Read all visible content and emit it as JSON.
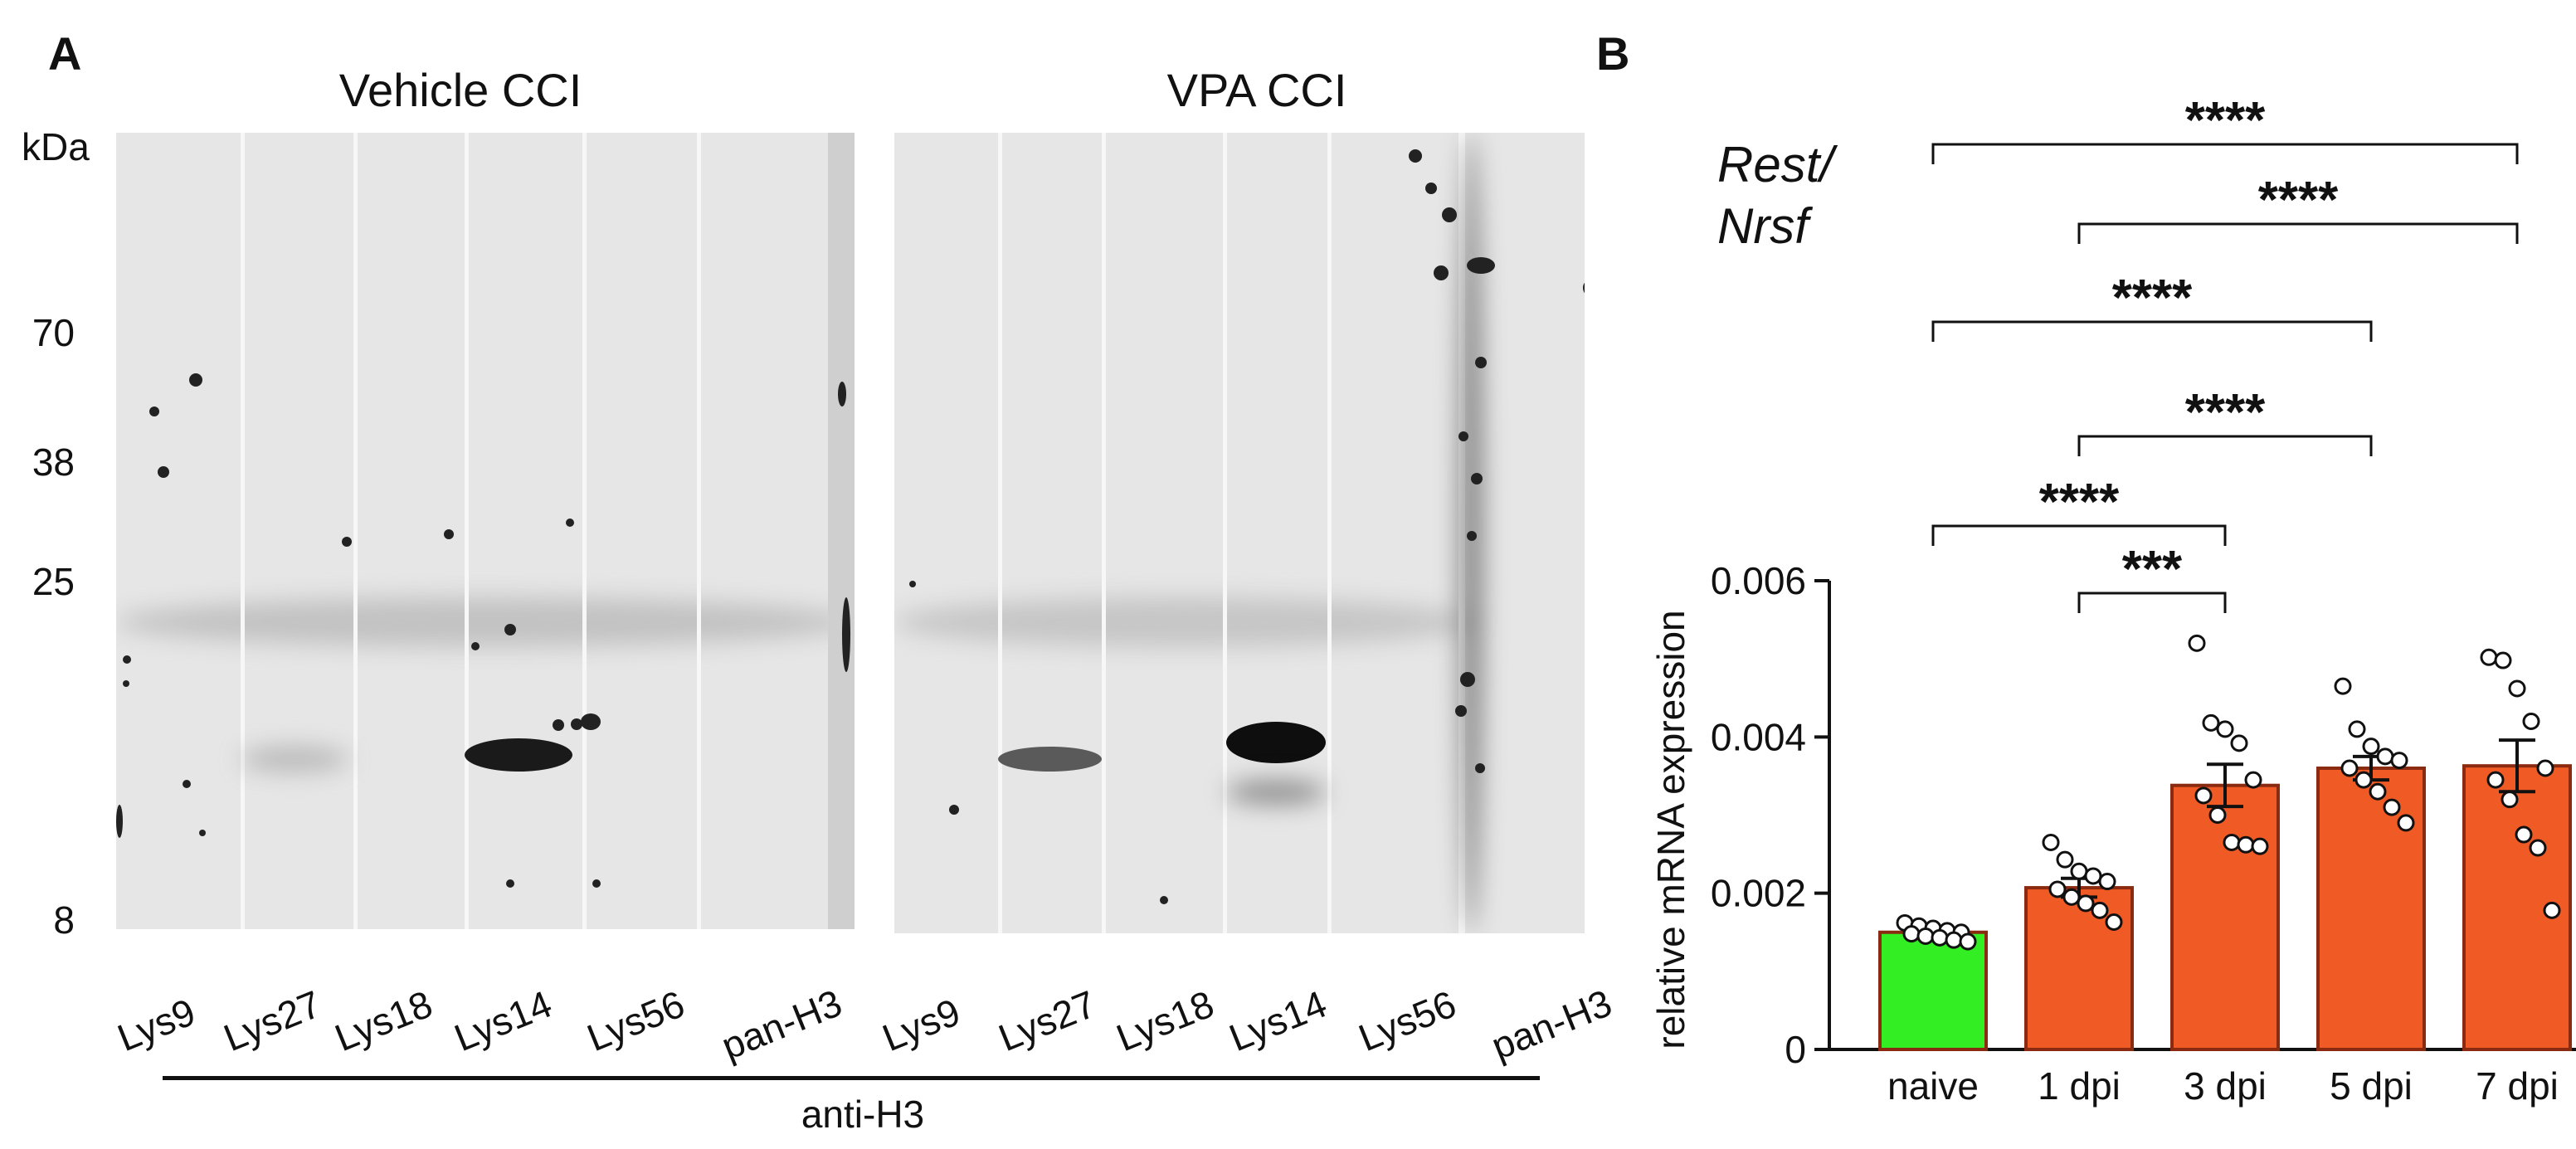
{
  "panel_a": {
    "letter": "A",
    "blots": [
      {
        "title": "Vehicle CCI",
        "lanes": [
          "Lys9",
          "Lys27",
          "Lys18",
          "Lys14",
          "Lys56",
          "pan-H3"
        ]
      },
      {
        "title": "VPA CCI",
        "lanes": [
          "Lys9",
          "Lys27",
          "Lys18",
          "Lys14",
          "Lys56",
          "pan-H3"
        ]
      }
    ],
    "mw_unit": "kDa",
    "mw_markers": [
      "70",
      "38",
      "25",
      "8"
    ],
    "antibody_label": "anti-H3"
  },
  "panel_b": {
    "letter": "B",
    "gene_label_line1": "Rest/",
    "gene_label_line2": "Nrsf"
  },
  "chart_data": {
    "type": "bar",
    "title": "",
    "xlabel": "",
    "ylabel": "relative mRNA expression",
    "ylim": [
      0,
      0.006
    ],
    "yticks": [
      "0",
      "0.002",
      "0.004",
      "0.006"
    ],
    "ytick_values": [
      0,
      0.002,
      0.004,
      0.006
    ],
    "categories": [
      "naive",
      "1 dpi",
      "3 dpi",
      "5 dpi",
      "7 dpi"
    ],
    "values": [
      0.0015,
      0.00207,
      0.00338,
      0.0036,
      0.00363
    ],
    "sem": [
      5e-05,
      0.00012,
      0.00027,
      0.00015,
      0.00033
    ],
    "bar_colors": [
      "#33ee22",
      "#f05a24",
      "#f05a24",
      "#f05a24",
      "#f05a24"
    ],
    "points": [
      [
        0.00162,
        0.00158,
        0.00155,
        0.00152,
        0.0015,
        0.00148,
        0.00145,
        0.00143,
        0.0014,
        0.00138
      ],
      [
        0.00265,
        0.00243,
        0.00228,
        0.00222,
        0.00215,
        0.00205,
        0.00195,
        0.00187,
        0.00178,
        0.00163
      ],
      [
        0.0052,
        0.00418,
        0.0041,
        0.00392,
        0.00345,
        0.00325,
        0.003,
        0.00265,
        0.00262,
        0.0026
      ],
      [
        0.00465,
        0.0041,
        0.00388,
        0.00375,
        0.0037,
        0.0036,
        0.00345,
        0.0033,
        0.0031,
        0.0029
      ],
      [
        0.00502,
        0.00498,
        0.00462,
        0.0042,
        0.0036,
        0.00345,
        0.0032,
        0.00275,
        0.00258,
        0.00178
      ]
    ],
    "comparisons": [
      {
        "from": "naive",
        "to": "7 dpi",
        "label": "****"
      },
      {
        "from": "1 dpi",
        "to": "7 dpi",
        "label": "****"
      },
      {
        "from": "naive",
        "to": "5 dpi",
        "label": "****"
      },
      {
        "from": "1 dpi",
        "to": "5 dpi",
        "label": "****"
      },
      {
        "from": "naive",
        "to": "3 dpi",
        "label": "****"
      },
      {
        "from": "1 dpi",
        "to": "3 dpi",
        "label": "***"
      }
    ]
  }
}
